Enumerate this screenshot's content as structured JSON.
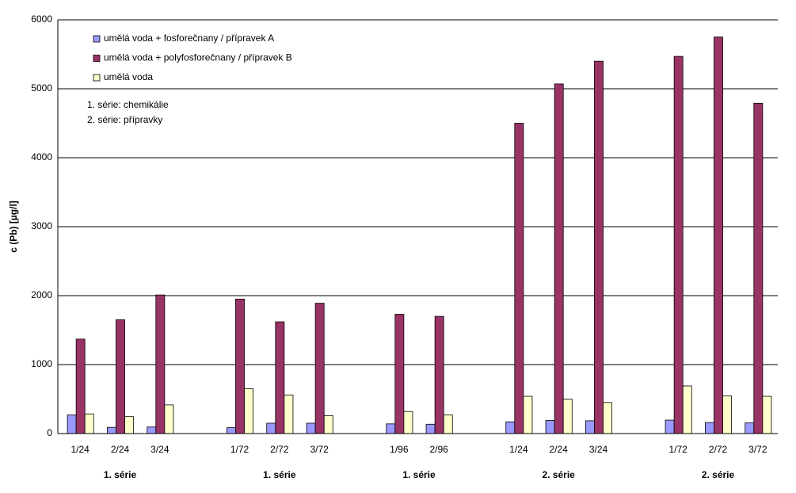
{
  "chart_data": {
    "type": "bar",
    "y_label": "c (Pb) [µg/l]",
    "annotations": [
      "1. série: chemikálie",
      "2. série: přípravky"
    ],
    "categories": [
      "1/24",
      "2/24",
      "3/24",
      "1/72",
      "2/72",
      "3/72",
      "1/96",
      "2/96",
      "1/24",
      "2/24",
      "3/24",
      "1/72",
      "2/72",
      "3/72"
    ],
    "groups": [
      {
        "label": "1. série",
        "size": 3
      },
      {
        "label": "1. série",
        "size": 3
      },
      {
        "label": "1. série",
        "size": 2
      },
      {
        "label": "2. série",
        "size": 3
      },
      {
        "label": "2. série",
        "size": 3
      }
    ],
    "series": [
      {
        "name": "umělá voda + fosforečnany / přípravek A",
        "color": "#9999ff",
        "values": [
          270,
          90,
          95,
          85,
          150,
          150,
          140,
          135,
          170,
          190,
          185,
          195,
          160,
          155
        ]
      },
      {
        "name": "umělá voda + polyfosforečnany / přípravek B",
        "color": "#993366",
        "values": [
          1370,
          1650,
          2010,
          1950,
          1620,
          1890,
          1730,
          1700,
          4500,
          5070,
          5400,
          5470,
          5750,
          4790
        ]
      },
      {
        "name": "umělá voda",
        "color": "#ffffcc",
        "values": [
          285,
          245,
          415,
          650,
          560,
          260,
          320,
          270,
          540,
          500,
          450,
          690,
          545,
          540
        ]
      }
    ],
    "ylim": [
      0,
      6000
    ],
    "yticks": [
      0,
      1000,
      2000,
      3000,
      4000,
      5000,
      6000
    ],
    "grid": true
  }
}
